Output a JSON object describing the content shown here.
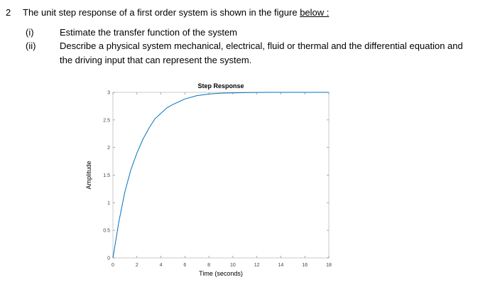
{
  "question": {
    "number": "2",
    "text_prefix": "The unit step response of a first order system is shown in the figure ",
    "text_link": "below :",
    "items": [
      {
        "label": "(i)",
        "text": "Estimate the transfer function of the system"
      },
      {
        "label": "(ii)",
        "text": "Describe a physical system mechanical, electrical, fluid or thermal and the differential equation and"
      },
      {
        "label": "",
        "text": "the driving input that can represent the system."
      }
    ]
  },
  "chart_data": {
    "type": "line",
    "title": "Step Response",
    "xlabel": "Time (seconds)",
    "ylabel": "Amplitude",
    "xlim": [
      0,
      18
    ],
    "ylim": [
      0,
      3
    ],
    "xticks": [
      "0",
      "2",
      "4",
      "6",
      "8",
      "10",
      "12",
      "14",
      "16",
      "18"
    ],
    "yticks": [
      "0",
      "0.5",
      "1",
      "1.5",
      "2",
      "2.5",
      "3"
    ],
    "grid": false,
    "line_color": "#0072bd",
    "series": [
      {
        "x": [
          0,
          0.5,
          1,
          1.5,
          2,
          2.5,
          3,
          3.5,
          4,
          4.5,
          5,
          6,
          7,
          8,
          9,
          10,
          11,
          12,
          13,
          14,
          16,
          18
        ],
        "y": [
          0,
          0.66,
          1.2,
          1.6,
          1.9,
          2.15,
          2.35,
          2.52,
          2.62,
          2.72,
          2.78,
          2.88,
          2.94,
          2.97,
          2.985,
          2.99,
          2.995,
          2.998,
          3.0,
          3.0,
          3.0,
          3.0
        ]
      }
    ]
  }
}
